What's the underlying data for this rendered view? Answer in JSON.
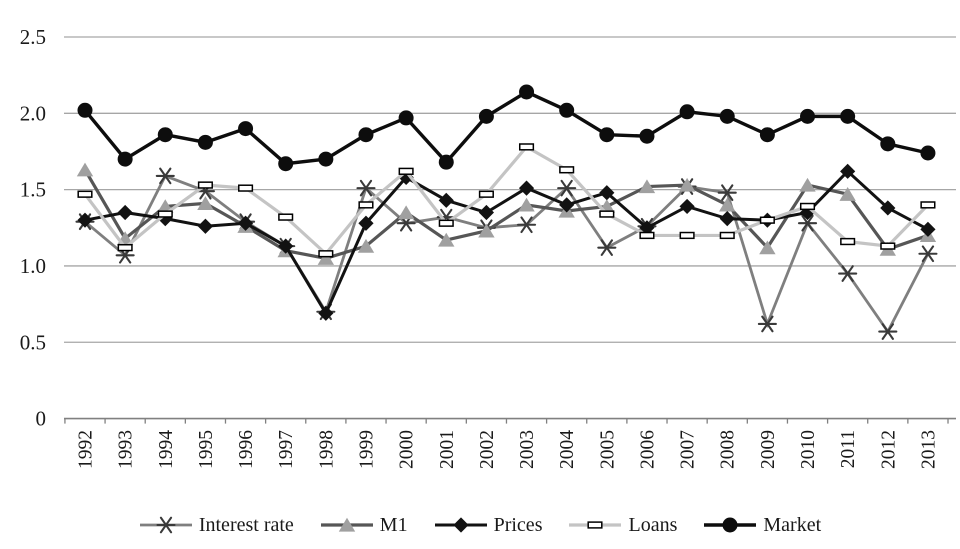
{
  "chart_data": {
    "type": "line",
    "title": "",
    "categories": [
      "1992",
      "1993",
      "1994",
      "1995",
      "1996",
      "1997",
      "1998",
      "1999",
      "2000",
      "2001",
      "2002",
      "2003",
      "2004",
      "2005",
      "2006",
      "2007",
      "2008",
      "2009",
      "2010",
      "2011",
      "2012",
      "2013"
    ],
    "y_tick_labels": [
      "2.5",
      "2.0",
      "1.5",
      "1.0",
      "0.5",
      "0"
    ],
    "ylim": [
      0,
      2.5
    ],
    "grid": true,
    "legend_position": "bottom",
    "gridline_color": "#a6a6a6",
    "axis_color": "#808080",
    "series": [
      {
        "name": "Interest rate",
        "marker": "star",
        "line_color": "#7f7f7f",
        "marker_color": "#3a3a3a",
        "line_width": 2.8,
        "values": [
          1.29,
          1.07,
          1.59,
          1.49,
          1.29,
          1.13,
          0.7,
          1.51,
          1.28,
          1.32,
          1.25,
          1.27,
          1.51,
          1.12,
          1.26,
          1.52,
          1.48,
          0.62,
          1.28,
          0.95,
          0.57,
          1.08
        ]
      },
      {
        "name": "M1",
        "marker": "triangle",
        "line_color": "#565656",
        "marker_color": "#a0a0a0",
        "line_width": 3.2,
        "values": [
          1.63,
          1.18,
          1.39,
          1.41,
          1.26,
          1.1,
          1.05,
          1.13,
          1.35,
          1.17,
          1.23,
          1.4,
          1.36,
          1.39,
          1.52,
          1.53,
          1.4,
          1.12,
          1.53,
          1.47,
          1.11,
          1.2
        ]
      },
      {
        "name": "Prices",
        "marker": "diamond",
        "line_color": "#121212",
        "marker_color": "#121212",
        "line_width": 3.0,
        "values": [
          1.3,
          1.35,
          1.31,
          1.26,
          1.28,
          1.13,
          0.69,
          1.28,
          1.58,
          1.43,
          1.35,
          1.51,
          1.4,
          1.48,
          1.25,
          1.39,
          1.31,
          1.3,
          1.35,
          1.62,
          1.38,
          1.24
        ]
      },
      {
        "name": "Loans",
        "marker": "dash-rect",
        "line_color": "#c4c4c4",
        "marker_color": "#ffffff",
        "line_width": 3.2,
        "values": [
          1.47,
          1.12,
          1.34,
          1.53,
          1.51,
          1.32,
          1.08,
          1.4,
          1.62,
          1.28,
          1.47,
          1.78,
          1.63,
          1.34,
          1.2,
          1.2,
          1.2,
          1.3,
          1.39,
          1.16,
          1.13,
          1.4
        ]
      },
      {
        "name": "Market",
        "marker": "circle",
        "line_color": "#0d0d0d",
        "marker_color": "#0d0d0d",
        "line_width": 3.4,
        "values": [
          2.02,
          1.7,
          1.86,
          1.81,
          1.9,
          1.67,
          1.7,
          1.86,
          1.97,
          1.68,
          1.98,
          2.14,
          2.02,
          1.86,
          1.85,
          2.01,
          1.98,
          1.86,
          1.98,
          1.98,
          1.8,
          1.74
        ]
      }
    ]
  }
}
